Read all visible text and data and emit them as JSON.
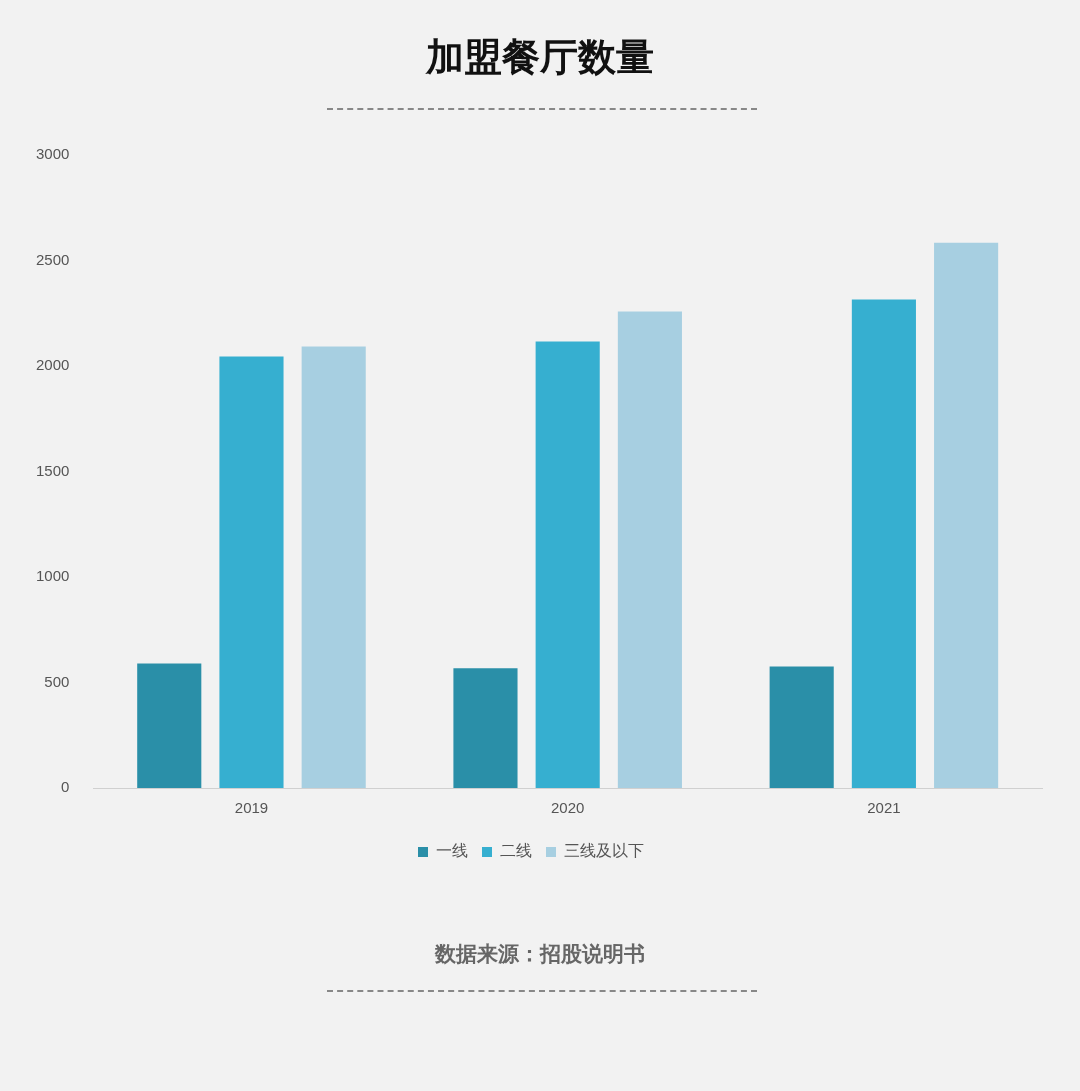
{
  "chart_data": {
    "type": "bar",
    "title": "加盟餐厅数量",
    "categories": [
      "2019",
      "2020",
      "2021"
    ],
    "series": [
      {
        "name": "一线",
        "color": "#2a8fa8",
        "values": [
          590,
          567,
          576
        ]
      },
      {
        "name": "二线",
        "color": "#36afd0",
        "values": [
          2045,
          2116,
          2315
        ]
      },
      {
        "name": "三线及以下",
        "color": "#a7cfe1",
        "values": [
          2093,
          2258,
          2584
        ]
      }
    ],
    "ylim": [
      0,
      3000
    ],
    "yticks": [
      0,
      500,
      1000,
      1500,
      2000,
      2500,
      3000
    ],
    "grid": false,
    "legend": "bottom",
    "annotations": [
      "数据来源：招股说明书"
    ]
  }
}
